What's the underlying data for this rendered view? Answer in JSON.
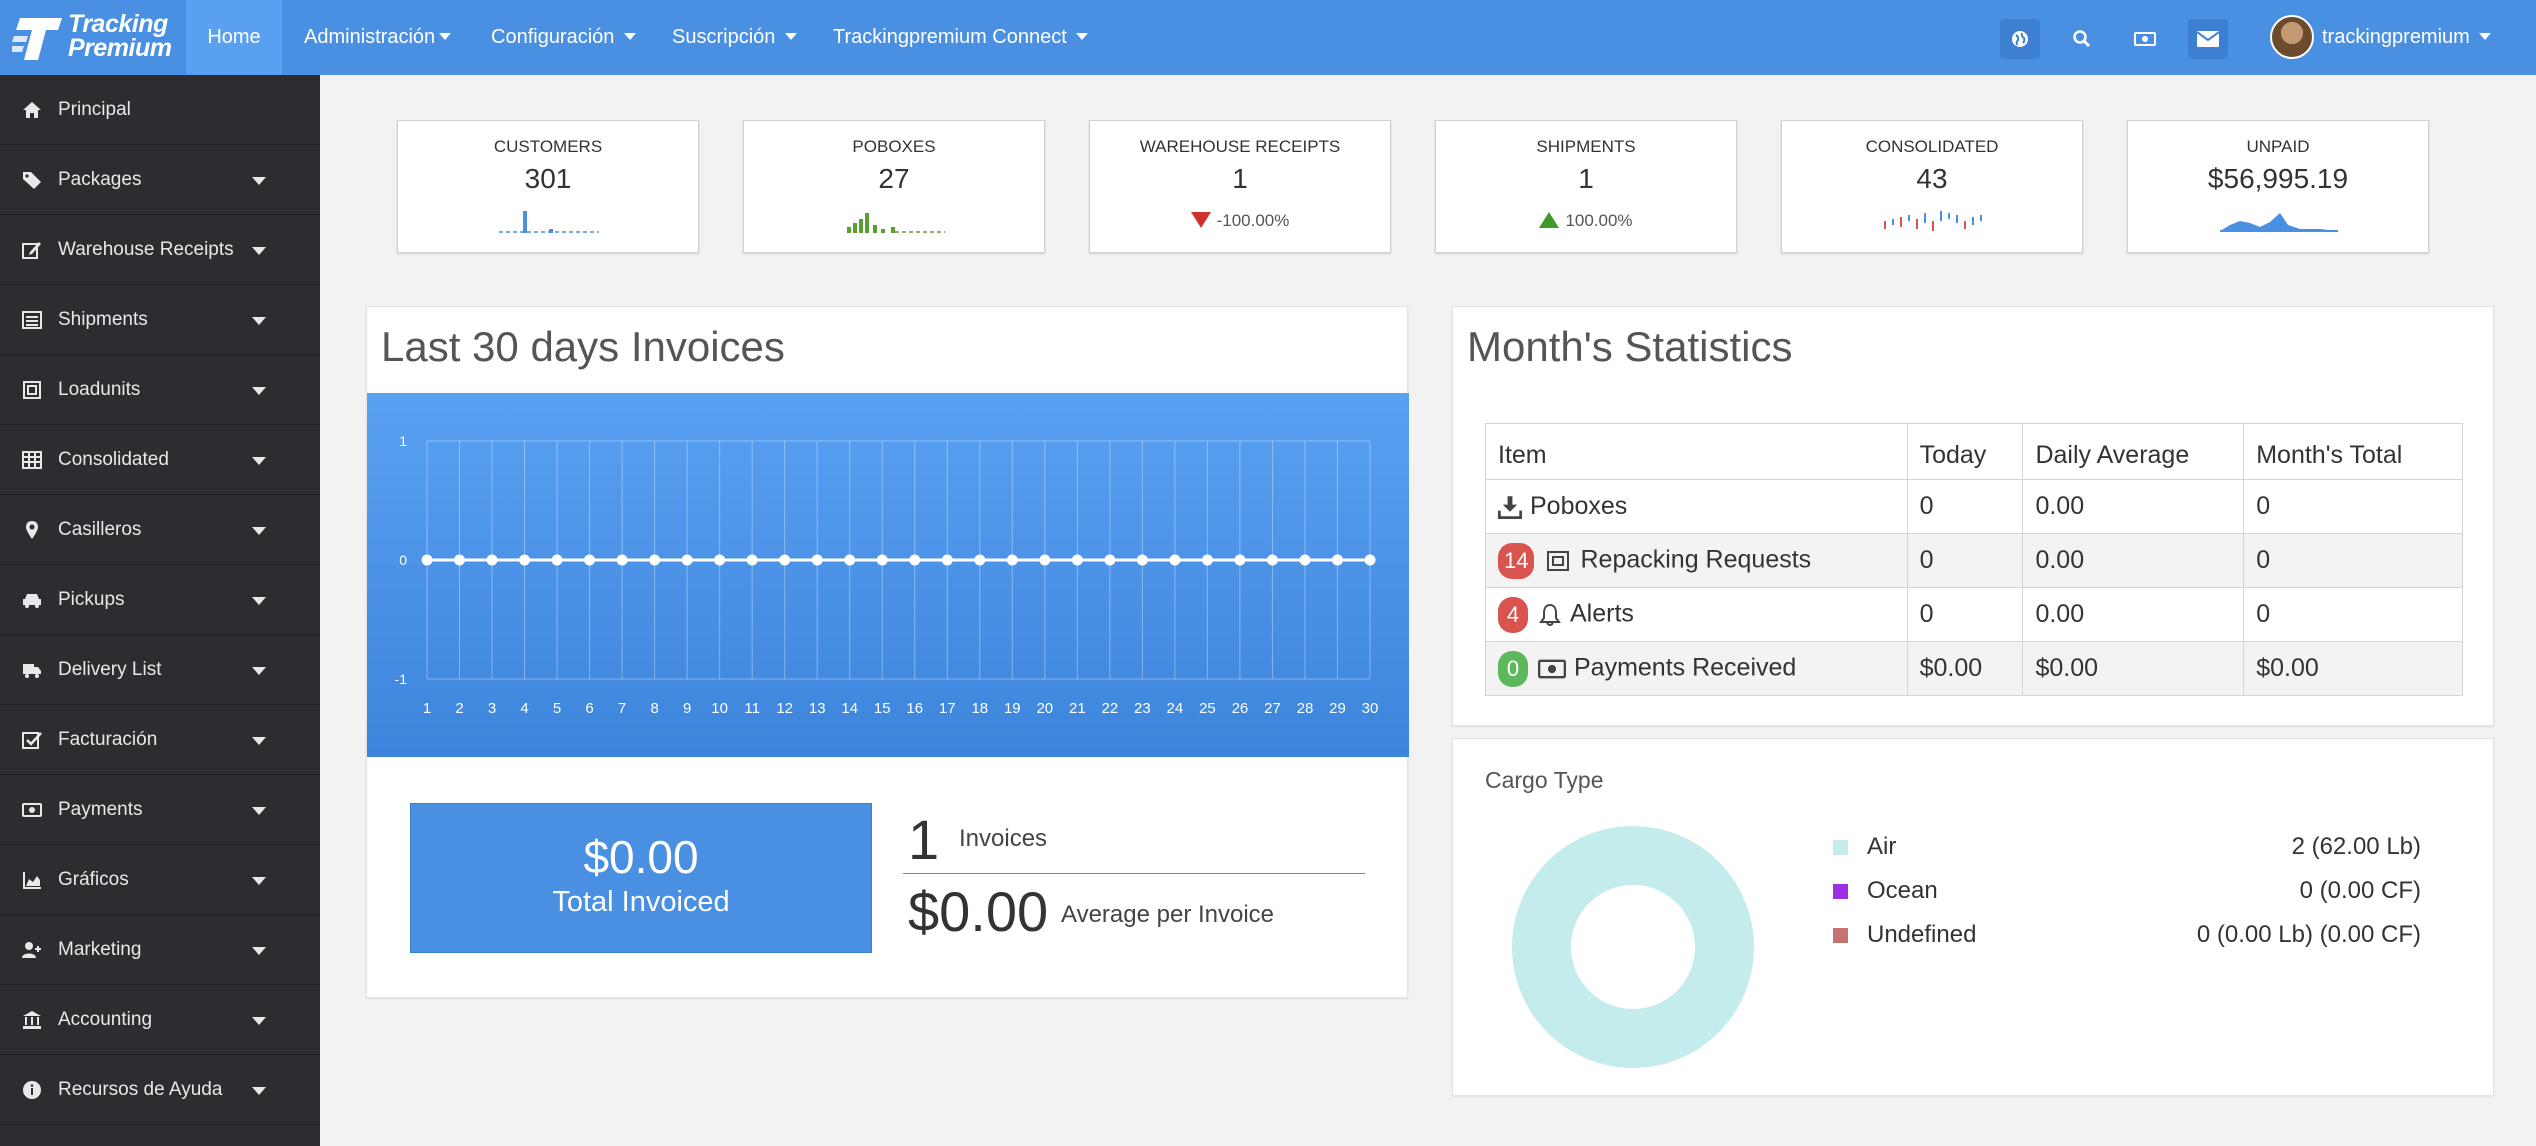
{
  "brand": {
    "line1": "Tracking",
    "line2": "Premium"
  },
  "nav": {
    "home": "Home",
    "menus": [
      "Administración",
      "Configuración",
      "Suscripción",
      "Trackingpremium Connect"
    ],
    "icons": [
      "globe-icon",
      "search-icon",
      "money-icon",
      "envelope-icon"
    ],
    "user": "trackingpremium"
  },
  "sidebar": {
    "items": [
      {
        "label": "Principal",
        "icon": "home-icon",
        "dropdown": false
      },
      {
        "label": "Packages",
        "icon": "tags-icon",
        "dropdown": true
      },
      {
        "label": "Warehouse Receipts",
        "icon": "edit-icon",
        "dropdown": true
      },
      {
        "label": "Shipments",
        "icon": "list-icon",
        "dropdown": true
      },
      {
        "label": "Loadunits",
        "icon": "container-icon",
        "dropdown": true
      },
      {
        "label": "Consolidated",
        "icon": "table-icon",
        "dropdown": true
      },
      {
        "label": "Casilleros",
        "icon": "map-marker-icon",
        "dropdown": true
      },
      {
        "label": "Pickups",
        "icon": "car-icon",
        "dropdown": true
      },
      {
        "label": "Delivery List",
        "icon": "truck-icon",
        "dropdown": true
      },
      {
        "label": "Facturación",
        "icon": "check-square-icon",
        "dropdown": true
      },
      {
        "label": "Payments",
        "icon": "money-icon",
        "dropdown": true
      },
      {
        "label": "Gráficos",
        "icon": "area-chart-icon",
        "dropdown": true
      },
      {
        "label": "Marketing",
        "icon": "user-plus-icon",
        "dropdown": true
      },
      {
        "label": "Accounting",
        "icon": "bank-icon",
        "dropdown": true
      },
      {
        "label": "Recursos de Ayuda",
        "icon": "info-icon",
        "dropdown": true
      }
    ]
  },
  "stats": [
    {
      "title": "CUSTOMERS",
      "value": "301",
      "spark": "bars-blue"
    },
    {
      "title": "POBOXES",
      "value": "27",
      "spark": "bars-green"
    },
    {
      "title": "WAREHOUSE RECEIPTS",
      "value": "1",
      "change": "-100.00%",
      "trend": "down"
    },
    {
      "title": "SHIPMENTS",
      "value": "1",
      "change": "100.00%",
      "trend": "up"
    },
    {
      "title": "CONSOLIDATED",
      "value": "43",
      "spark": "ticks-mixed"
    },
    {
      "title": "UNPAID",
      "value": "$56,995.19",
      "spark": "area-blue"
    }
  ],
  "invoices": {
    "title": "Last 30 days Invoices",
    "total_value": "$0.00",
    "total_label": "Total Invoiced",
    "count": "1",
    "count_label": "Invoices",
    "average": "$0.00",
    "average_label": "Average per Invoice"
  },
  "chart_data": {
    "type": "line",
    "title": "Last 30 days Invoices",
    "x": [
      1,
      2,
      3,
      4,
      5,
      6,
      7,
      8,
      9,
      10,
      11,
      12,
      13,
      14,
      15,
      16,
      17,
      18,
      19,
      20,
      21,
      22,
      23,
      24,
      25,
      26,
      27,
      28,
      29,
      30
    ],
    "series": [
      {
        "values": [
          0,
          0,
          0,
          0,
          0,
          0,
          0,
          0,
          0,
          0,
          0,
          0,
          0,
          0,
          0,
          0,
          0,
          0,
          0,
          0,
          0,
          0,
          0,
          0,
          0,
          0,
          0,
          0,
          0,
          0
        ]
      }
    ],
    "ylim": [
      -1,
      1
    ],
    "yticks": [
      1,
      0,
      -1
    ],
    "grid": true,
    "colors": {
      "background": "#4a90e2",
      "line": "#ffffff"
    }
  },
  "month_stats": {
    "title": "Month's Statistics",
    "headers": [
      "Item",
      "Today",
      "Daily Average",
      "Month's Total"
    ],
    "rows": [
      {
        "badge": "",
        "badge_color": "",
        "icon": "download-icon",
        "item": "Poboxes",
        "today": "0",
        "avg": "0.00",
        "total": "0"
      },
      {
        "badge": "14",
        "badge_color": "#d9534f",
        "icon": "container-icon",
        "item": "Repacking Requests",
        "today": "0",
        "avg": "0.00",
        "total": "0"
      },
      {
        "badge": "4",
        "badge_color": "#d9534f",
        "icon": "bell-icon",
        "item": "Alerts",
        "today": "0",
        "avg": "0.00",
        "total": "0"
      },
      {
        "badge": "0",
        "badge_color": "#5cb85c",
        "icon": "money-icon",
        "item": "Payments Received",
        "today": "$0.00",
        "avg": "$0.00",
        "total": "$0.00"
      }
    ]
  },
  "cargo": {
    "title": "Cargo Type",
    "legend": [
      {
        "name": "Air",
        "value": "2 (62.00 Lb)",
        "color": "#c5ecec"
      },
      {
        "name": "Ocean",
        "value": "0 (0.00 CF)",
        "color": "#9b30e6"
      },
      {
        "name": "Undefined",
        "value": "0 (0.00 Lb) (0.00 CF)",
        "color": "#c77373"
      }
    ],
    "shares": [
      1,
      0,
      0
    ]
  }
}
